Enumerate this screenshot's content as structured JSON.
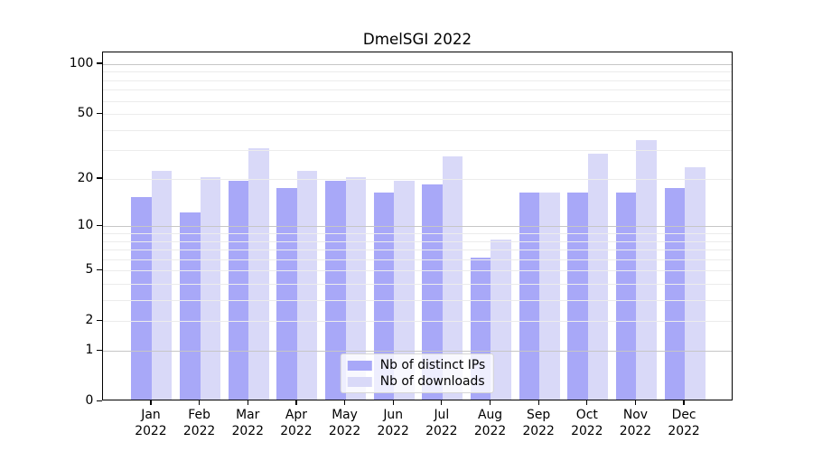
{
  "figure": {
    "title": "DmelSGI 2022"
  },
  "chart_data": {
    "type": "bar",
    "title": "DmelSGI 2022",
    "categories": [
      "Jan",
      "Feb",
      "Mar",
      "Apr",
      "May",
      "Jun",
      "Jul",
      "Aug",
      "Sep",
      "Oct",
      "Nov",
      "Dec"
    ],
    "year": "2022",
    "series": [
      {
        "name": "Nb of distinct IPs",
        "color": "#a8a8f8",
        "values": [
          15,
          12,
          19,
          17,
          19,
          16,
          18,
          6,
          16,
          16,
          16,
          17
        ]
      },
      {
        "name": "Nb of downloads",
        "color": "#d9d9f8",
        "values": [
          22,
          20,
          30,
          22,
          20,
          19,
          27,
          8,
          16,
          28,
          34,
          23
        ]
      }
    ],
    "xlabel": "",
    "ylabel": "",
    "yscale": "log1p",
    "ylim": [
      0,
      115
    ],
    "ytick_values": [
      100,
      50,
      20,
      10,
      5,
      2,
      1,
      0
    ],
    "ytick_labels": [
      "100",
      "50",
      "20",
      "10",
      "5",
      "2",
      "1",
      "0"
    ],
    "minor_gridline_values": [
      2,
      3,
      4,
      5,
      6,
      7,
      8,
      9,
      20,
      30,
      40,
      50,
      60,
      70,
      80,
      90
    ],
    "decade_gridline_values": [
      1,
      10,
      100
    ],
    "grid": "on",
    "legend_position": "lower center"
  }
}
